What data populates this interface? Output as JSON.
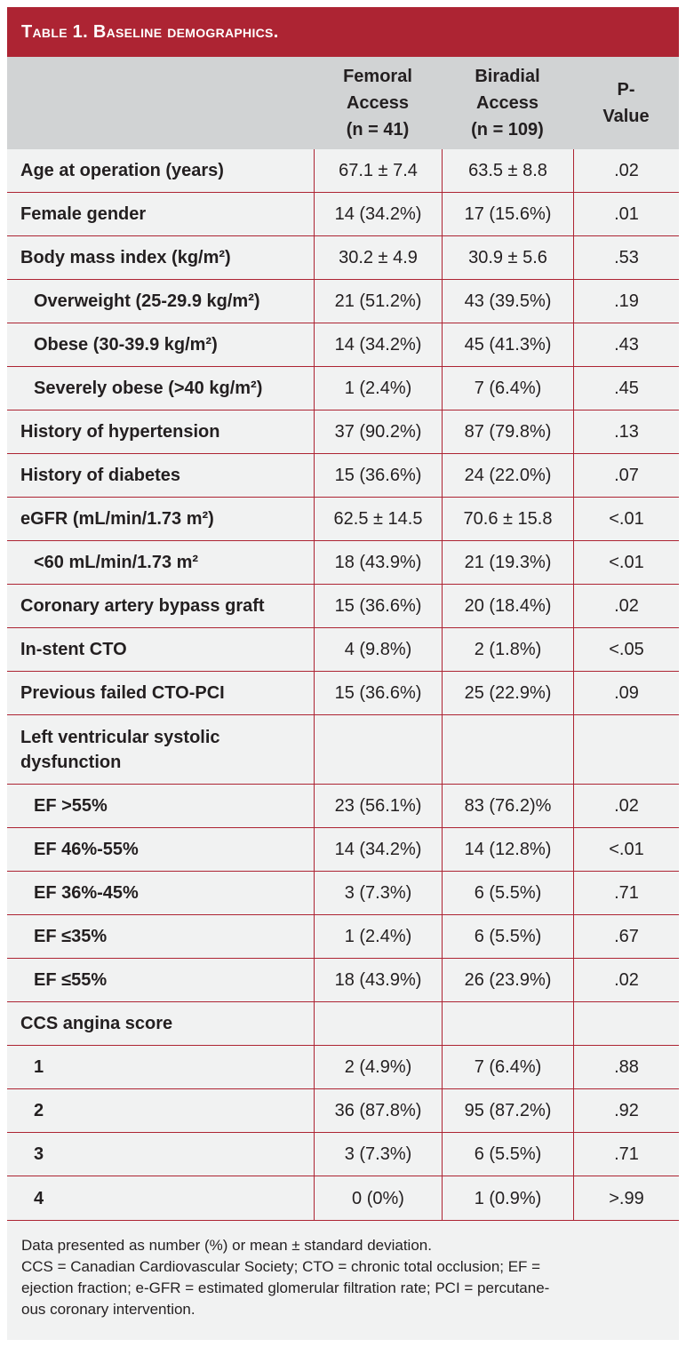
{
  "table_title": "Table 1. Baseline demographics.",
  "columns": [
    "",
    "Femoral\nAccess\n(n = 41)",
    "Biradial\nAccess\n(n = 109)",
    "P-\nValue"
  ],
  "rows": [
    {
      "label": "Age at operation (years)",
      "femoral": "67.1 ± 7.4",
      "biradial": "63.5 ± 8.8",
      "p": ".02",
      "indent": false
    },
    {
      "label": "Female gender",
      "femoral": "14 (34.2%)",
      "biradial": "17 (15.6%)",
      "p": ".01",
      "indent": false
    },
    {
      "label": "Body mass index (kg/m²)",
      "femoral": "30.2 ± 4.9",
      "biradial": "30.9 ± 5.6",
      "p": ".53",
      "indent": false
    },
    {
      "label": "Overweight (25-29.9 kg/m²)",
      "femoral": "21 (51.2%)",
      "biradial": "43 (39.5%)",
      "p": ".19",
      "indent": true
    },
    {
      "label": "Obese (30-39.9 kg/m²)",
      "femoral": "14 (34.2%)",
      "biradial": "45 (41.3%)",
      "p": ".43",
      "indent": true
    },
    {
      "label": "Severely obese (>40 kg/m²)",
      "femoral": "1 (2.4%)",
      "biradial": "7 (6.4%)",
      "p": ".45",
      "indent": true
    },
    {
      "label": "History of hypertension",
      "femoral": "37 (90.2%)",
      "biradial": "87 (79.8%)",
      "p": ".13",
      "indent": false
    },
    {
      "label": "History of diabetes",
      "femoral": "15 (36.6%)",
      "biradial": "24 (22.0%)",
      "p": ".07",
      "indent": false
    },
    {
      "label": "eGFR (mL/min/1.73 m²)",
      "femoral": "62.5 ± 14.5",
      "biradial": "70.6 ± 15.8",
      "p": "<.01",
      "indent": false
    },
    {
      "label": "<60 mL/min/1.73 m²",
      "femoral": "18 (43.9%)",
      "biradial": "21 (19.3%)",
      "p": "<.01",
      "indent": true
    },
    {
      "label": "Coronary artery bypass graft",
      "femoral": "15 (36.6%)",
      "biradial": "20 (18.4%)",
      "p": ".02",
      "indent": false
    },
    {
      "label": "In-stent CTO",
      "femoral": "4 (9.8%)",
      "biradial": "2 (1.8%)",
      "p": "<.05",
      "indent": false
    },
    {
      "label": "Previous failed CTO-PCI",
      "femoral": "15 (36.6%)",
      "biradial": "25 (22.9%)",
      "p": ".09",
      "indent": false
    },
    {
      "label": "Left ventricular systolic\ndysfunction",
      "femoral": "",
      "biradial": "",
      "p": "",
      "indent": false,
      "tall": true
    },
    {
      "label": "EF >55%",
      "femoral": "23 (56.1%)",
      "biradial": "83 (76.2)%",
      "p": ".02",
      "indent": true
    },
    {
      "label": "EF 46%-55%",
      "femoral": "14 (34.2%)",
      "biradial": "14 (12.8%)",
      "p": "<.01",
      "indent": true
    },
    {
      "label": "EF 36%-45%",
      "femoral": "3 (7.3%)",
      "biradial": "6 (5.5%)",
      "p": ".71",
      "indent": true
    },
    {
      "label": "EF ≤35%",
      "femoral": "1 (2.4%)",
      "biradial": "6 (5.5%)",
      "p": ".67",
      "indent": true
    },
    {
      "label": "EF ≤55%",
      "femoral": "18 (43.9%)",
      "biradial": "26 (23.9%)",
      "p": ".02",
      "indent": true
    },
    {
      "label": "CCS angina score",
      "femoral": "",
      "biradial": "",
      "p": "",
      "indent": false
    },
    {
      "label": "1",
      "femoral": "2 (4.9%)",
      "biradial": "7 (6.4%)",
      "p": ".88",
      "indent": true
    },
    {
      "label": "2",
      "femoral": "36 (87.8%)",
      "biradial": "95 (87.2%)",
      "p": ".92",
      "indent": true
    },
    {
      "label": "3",
      "femoral": "3 (7.3%)",
      "biradial": "6 (5.5%)",
      "p": ".71",
      "indent": true
    },
    {
      "label": "4",
      "femoral": "0 (0%)",
      "biradial": "1 (0.9%)",
      "p": ">.99",
      "indent": true
    }
  ],
  "footnote": {
    "line1": "Data presented as number (%) or mean ± standard deviation.",
    "line2": "CCS = Canadian Cardiovascular Society; CTO = chronic total occlusion; EF =\nejection fraction; e-GFR = estimated glomerular filtration rate; PCI = percutane-\nous coronary intervention."
  },
  "colors": {
    "header_bar": "#ad2433",
    "column_header_bg": "#d1d3d4",
    "body_bg": "#f1f2f2",
    "rule": "#ad2433"
  }
}
